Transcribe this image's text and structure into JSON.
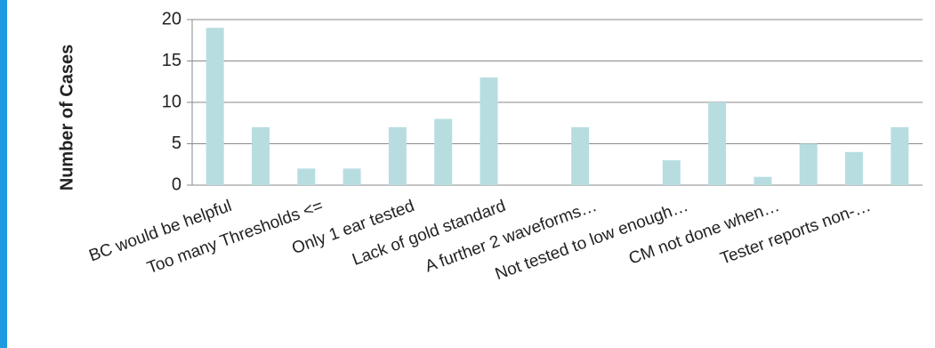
{
  "chart_data": {
    "type": "bar",
    "y_label": "Number of Cases",
    "categories": [
      "BC would be helpful",
      null,
      "Too many Thresholds <=",
      null,
      "Only 1 ear tested",
      null,
      "Lack of gold standard",
      null,
      "A further 2 waveforms…",
      null,
      "Not tested to low enough…",
      null,
      "CM not done when…",
      null,
      "Tester reports non-…",
      null
    ],
    "values": [
      19,
      7,
      2,
      2,
      7,
      8,
      13,
      0,
      7,
      0,
      3,
      10,
      1,
      5,
      4,
      7
    ],
    "color": "#b7dde1",
    "ylim": [
      0,
      20
    ],
    "yticks": [
      0,
      5,
      10,
      15,
      20
    ],
    "grid": true
  }
}
